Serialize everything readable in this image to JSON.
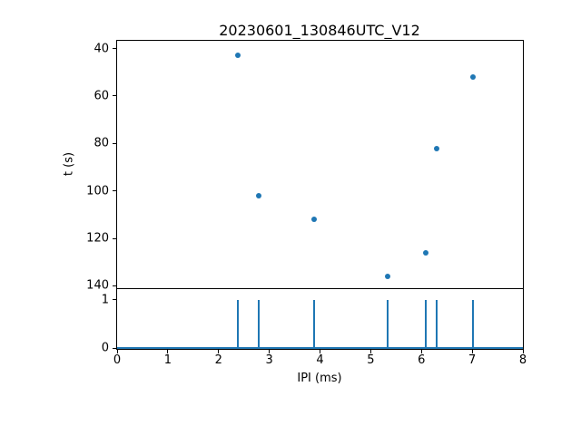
{
  "figure": {
    "background": "#ffffff",
    "accent_color": "#1f77b4"
  },
  "chart_data": [
    {
      "type": "scatter",
      "title": "20230601_130846UTC_V12",
      "xlabel": "",
      "ylabel": "t (s)",
      "xlim": [
        0,
        8
      ],
      "ylim_top": 36.7,
      "ylim_bottom": 141,
      "y_axis_inverted": true,
      "x": [
        2.38,
        2.79,
        3.88,
        5.33,
        6.08,
        6.3,
        7.02
      ],
      "y": [
        43,
        102,
        112,
        136,
        126,
        82,
        52
      ],
      "yticks": [
        40,
        60,
        80,
        100,
        120,
        140
      ],
      "marker_color": "#1f77b4",
      "grid": false,
      "legend": false
    },
    {
      "type": "stem",
      "title": "",
      "xlabel": "IPI (ms)",
      "ylabel": "",
      "xlim": [
        0,
        8
      ],
      "ylim": [
        0,
        1.22
      ],
      "x": [
        2.38,
        2.79,
        3.88,
        5.33,
        6.08,
        6.3,
        7.02
      ],
      "y": [
        1,
        1,
        1,
        1,
        1,
        1,
        1
      ],
      "xticks": [
        0,
        1,
        2,
        3,
        4,
        5,
        6,
        7,
        8
      ],
      "yticks": [
        0,
        1
      ],
      "line_color": "#1f77b4",
      "baseline_color": "#1f77b4",
      "grid": false,
      "legend": false
    }
  ]
}
